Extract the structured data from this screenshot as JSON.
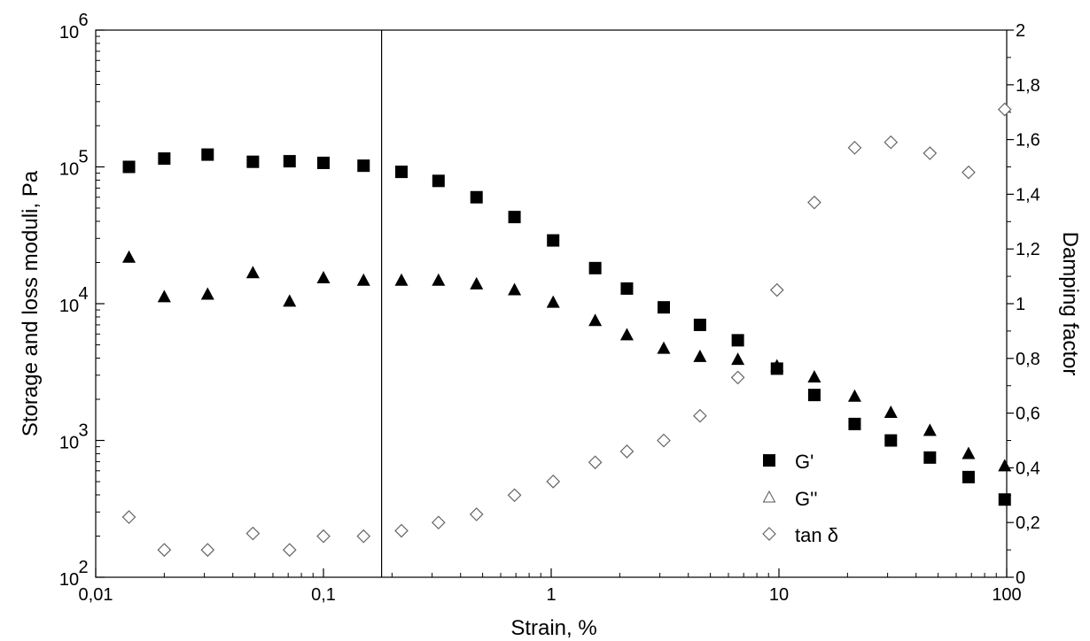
{
  "chart_data": {
    "type": "scatter",
    "xlabel": "Strain, %",
    "ylabel_left": "Storage and loss moduli, Pa",
    "ylabel_right": "Damping factor",
    "x_scale": "log",
    "y_left_scale": "log",
    "xlim": [
      0.01,
      100
    ],
    "ylim_left": [
      100,
      1000000
    ],
    "ylim_right": [
      0,
      2
    ],
    "x_ticks": [
      {
        "value": 0.01,
        "label": "0,01"
      },
      {
        "value": 0.1,
        "label": "0,1"
      },
      {
        "value": 1,
        "label": "1"
      },
      {
        "value": 10,
        "label": "10"
      },
      {
        "value": 100,
        "label": "100"
      }
    ],
    "y_left_ticks": [
      {
        "value": 100,
        "base": "10",
        "exp": "2"
      },
      {
        "value": 1000,
        "base": "10",
        "exp": "3"
      },
      {
        "value": 10000,
        "base": "10",
        "exp": "4"
      },
      {
        "value": 100000,
        "base": "10",
        "exp": "5"
      },
      {
        "value": 1000000,
        "base": "10",
        "exp": "6"
      }
    ],
    "y_right_ticks": [
      {
        "value": 0,
        "label": "0"
      },
      {
        "value": 0.2,
        "label": "0,2"
      },
      {
        "value": 0.4,
        "label": "0,4"
      },
      {
        "value": 0.6,
        "label": "0,6"
      },
      {
        "value": 0.8,
        "label": "0,8"
      },
      {
        "value": 1,
        "label": "1"
      },
      {
        "value": 1.2,
        "label": "1,2"
      },
      {
        "value": 1.4,
        "label": "1,4"
      },
      {
        "value": 1.6,
        "label": "1,6"
      },
      {
        "value": 1.8,
        "label": "1,8"
      },
      {
        "value": 2,
        "label": "2"
      }
    ],
    "vertical_line_x": 0.18,
    "grid": false,
    "legend_position": "bottom-right",
    "series": [
      {
        "name": "G'",
        "marker": "square-filled",
        "axis": "left",
        "x": [
          0.014,
          0.02,
          0.031,
          0.049,
          0.071,
          0.1,
          0.15,
          0.22,
          0.32,
          0.47,
          0.69,
          1.02,
          1.56,
          2.15,
          3.12,
          4.5,
          6.6,
          9.8,
          14.3,
          21.5,
          31,
          46,
          68,
          98
        ],
        "y": [
          100000,
          115000,
          123000,
          109000,
          110000,
          107000,
          102000,
          92000,
          79000,
          60000,
          43000,
          29000,
          18200,
          12900,
          9400,
          7000,
          5400,
          3350,
          2150,
          1320,
          1000,
          750,
          540,
          370
        ]
      },
      {
        "name": "G''",
        "marker": "triangle-filled",
        "axis": "left",
        "x": [
          0.014,
          0.02,
          0.031,
          0.049,
          0.071,
          0.1,
          0.15,
          0.22,
          0.32,
          0.47,
          0.69,
          1.02,
          1.56,
          2.15,
          3.12,
          4.5,
          6.6,
          9.8,
          14.3,
          21.5,
          31,
          46,
          68,
          98
        ],
        "y": [
          21800,
          11200,
          11700,
          16800,
          10400,
          15400,
          14800,
          14800,
          14800,
          13900,
          12600,
          10200,
          7500,
          5900,
          4700,
          4100,
          3900,
          3500,
          2900,
          2100,
          1600,
          1180,
          800,
          650
        ]
      },
      {
        "name": "tan δ",
        "marker": "diamond-open",
        "axis": "right",
        "x": [
          0.014,
          0.02,
          0.031,
          0.049,
          0.071,
          0.1,
          0.15,
          0.22,
          0.32,
          0.47,
          0.69,
          1.02,
          1.56,
          2.15,
          3.12,
          4.5,
          6.6,
          9.8,
          14.3,
          21.5,
          31,
          46,
          68,
          98
        ],
        "y": [
          0.22,
          0.1,
          0.1,
          0.16,
          0.1,
          0.15,
          0.15,
          0.17,
          0.2,
          0.23,
          0.3,
          0.35,
          0.42,
          0.46,
          0.5,
          0.59,
          0.73,
          1.05,
          1.37,
          1.57,
          1.59,
          1.55,
          1.48,
          1.71
        ]
      }
    ]
  }
}
